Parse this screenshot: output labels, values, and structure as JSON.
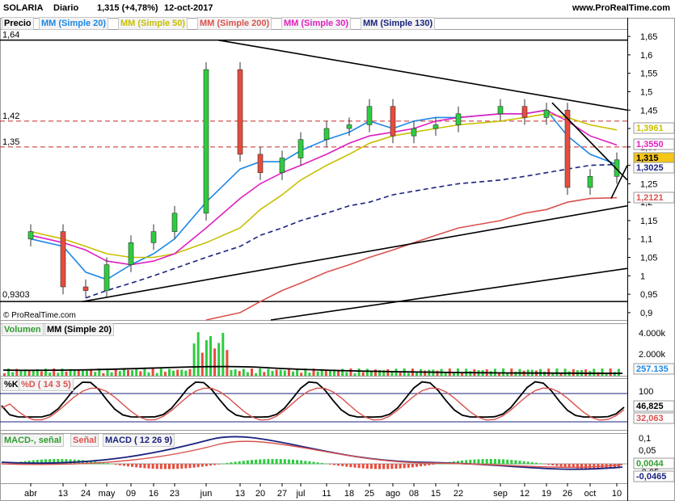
{
  "header": {
    "symbol": "SOLARIA",
    "period": "Diario",
    "price_change": "1,315 (+4,78%)",
    "date": "12-oct-2017",
    "site": "www.ProRealTime.com",
    "copyright": "© ProRealTime.com"
  },
  "price_panel": {
    "legend": [
      {
        "label": "Precio",
        "color": "#000000"
      },
      {
        "label": "MM (Simple 20)",
        "color": "#1e88e5"
      },
      {
        "label": "MM (Simple 50)",
        "color": "#c8c000"
      },
      {
        "label": "MM (Simple 200)",
        "color": "#d9534f"
      },
      {
        "label": "MM (Simple 30)",
        "color": "#e020c0"
      },
      {
        "label": "MM (Simple 130)",
        "color": "#1a237e"
      }
    ],
    "y_ticks": [
      "1,65",
      "1,6",
      "1,55",
      "1,5",
      "1,45",
      "1,4",
      "1,35",
      "1,3",
      "1,25",
      "1,2",
      "1,15",
      "1,1",
      "1,05",
      "1",
      "0,95",
      "0,9"
    ],
    "left_labels": [
      "1,64",
      "1,42",
      "1,35",
      "0,9303"
    ],
    "right_values": [
      {
        "text": "1,3961",
        "color": "#c8c000"
      },
      {
        "text": "1,3550",
        "color": "#e020c0"
      },
      {
        "text": "1,315",
        "color": "#000000"
      },
      {
        "text": "1,3025",
        "color": "#1a237e"
      },
      {
        "text": "1,2121",
        "color": "#d9534f"
      }
    ]
  },
  "volume_panel": {
    "legend": [
      {
        "label": "Volumen",
        "color": "#2e9d2e"
      },
      {
        "label": "MM (Simple 20)",
        "color": "#000000"
      }
    ],
    "y_ticks": [
      "4.000k",
      "2.000k"
    ],
    "right_values": [
      {
        "text": "257.135",
        "color": "#1e88e5"
      }
    ]
  },
  "stoch_panel": {
    "legend": [
      {
        "label": "%K",
        "color": "#000000"
      },
      {
        "label": "%D ( 14 3 5)",
        "color": "#d9534f"
      }
    ],
    "y_ticks": [
      "100",
      "0"
    ],
    "right_values": [
      {
        "text": "46,825",
        "color": "#000000"
      },
      {
        "text": "32,063",
        "color": "#d9534f"
      }
    ]
  },
  "macd_panel": {
    "legend": [
      {
        "label": "MACD-, señal",
        "color": "#2e9d2e"
      },
      {
        "label": "Señal",
        "color": "#d9534f"
      },
      {
        "label": "MACD ( 12 26 9)",
        "color": "#1a237e"
      }
    ],
    "y_ticks": [
      "0,1",
      "0,05",
      "0",
      "-0,05"
    ],
    "right_values": [
      {
        "text": "0,0044",
        "color": "#2e9d2e"
      },
      {
        "text": "-0,0465",
        "color": "#1a237e"
      }
    ]
  },
  "x_ticks": [
    "abr",
    "13",
    "24",
    "may",
    "09",
    "16",
    "23",
    "jun",
    "13",
    "20",
    "27",
    "jul",
    "11",
    "18",
    "25",
    "ago",
    "08",
    "15",
    "22",
    "sep",
    "12",
    "19",
    "26",
    "oct",
    "10"
  ],
  "chart_data": {
    "type": "line",
    "title": "SOLARIA Diario",
    "x": [
      "abr",
      "13",
      "24",
      "may",
      "09",
      "16",
      "23",
      "jun",
      "13",
      "20",
      "27",
      "jul",
      "11",
      "18",
      "25",
      "ago",
      "08",
      "15",
      "22",
      "sep",
      "12",
      "19",
      "26",
      "oct",
      "10"
    ],
    "ylim": [
      0.88,
      1.67
    ],
    "series": [
      {
        "name": "Precio",
        "values": [
          1.12,
          0.97,
          0.96,
          1.03,
          1.09,
          1.12,
          1.17,
          1.56,
          1.33,
          1.28,
          1.32,
          1.37,
          1.4,
          1.41,
          1.46,
          1.38,
          1.4,
          1.41,
          1.44,
          1.46,
          1.43,
          1.45,
          1.24,
          1.27,
          1.315
        ]
      },
      {
        "name": "MM (Simple 20)",
        "values": [
          1.1,
          1.08,
          1.01,
          0.99,
          1.03,
          1.06,
          1.1,
          1.2,
          1.29,
          1.31,
          1.31,
          1.34,
          1.37,
          1.39,
          1.42,
          1.4,
          1.42,
          1.43,
          1.43,
          1.44,
          1.44,
          1.45,
          1.38,
          1.33,
          1.3025
        ]
      },
      {
        "name": "MM (Simple 50)",
        "values": [
          1.12,
          1.1,
          1.08,
          1.06,
          1.05,
          1.05,
          1.06,
          1.09,
          1.13,
          1.18,
          1.22,
          1.26,
          1.3,
          1.33,
          1.36,
          1.38,
          1.39,
          1.4,
          1.41,
          1.42,
          1.43,
          1.44,
          1.43,
          1.41,
          1.3961
        ]
      },
      {
        "name": "MM (Simple 200)",
        "values": [
          null,
          null,
          null,
          null,
          null,
          null,
          null,
          0.88,
          0.9,
          0.93,
          0.96,
          0.98,
          1.01,
          1.03,
          1.05,
          1.07,
          1.09,
          1.11,
          1.13,
          1.15,
          1.17,
          1.18,
          1.2,
          1.21,
          1.2121
        ]
      },
      {
        "name": "MM (Simple 30)",
        "values": [
          1.11,
          1.09,
          1.07,
          1.04,
          1.03,
          1.04,
          1.06,
          1.13,
          1.21,
          1.25,
          1.28,
          1.3,
          1.33,
          1.36,
          1.38,
          1.39,
          1.4,
          1.42,
          1.43,
          1.44,
          1.44,
          1.45,
          1.42,
          1.38,
          1.355
        ]
      },
      {
        "name": "MM (Simple 130)",
        "values": [
          null,
          null,
          0.94,
          0.96,
          0.98,
          1.0,
          1.02,
          1.05,
          1.08,
          1.11,
          1.13,
          1.15,
          1.17,
          1.19,
          1.2,
          1.22,
          1.23,
          1.24,
          1.25,
          1.26,
          1.27,
          1.28,
          1.29,
          1.3,
          1.3025
        ]
      }
    ],
    "levels": [
      1.64,
      1.42,
      1.35,
      0.9303
    ]
  }
}
